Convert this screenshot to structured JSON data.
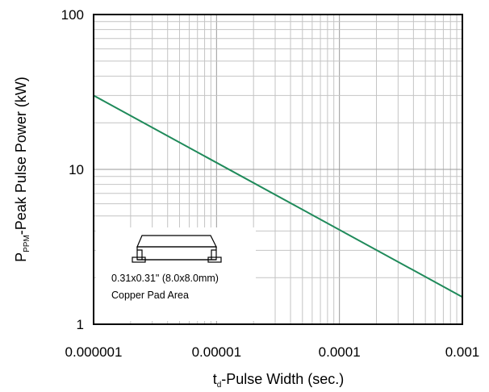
{
  "chart_data": {
    "type": "line",
    "x_scale": "log",
    "y_scale": "log",
    "xlim": [
      1e-06,
      0.001
    ],
    "ylim": [
      1,
      100
    ],
    "x_ticks": [
      "0.000001",
      "0.00001",
      "0.0001",
      "0.001"
    ],
    "y_ticks": [
      "1",
      "10",
      "100"
    ],
    "grid": true,
    "line_color": "#1f8a5a",
    "xlabel": {
      "t": "t",
      "sub": "d",
      "rest": "-Pulse Width (sec.)"
    },
    "ylabel": {
      "p": "P",
      "sub": "PPM",
      "rest": "-Peak Pulse Power (kW)"
    },
    "series": [
      {
        "x": [
          1e-06,
          0.001
        ],
        "y": [
          30,
          1.5
        ]
      }
    ],
    "annotation": {
      "line1": "0.31x0.31\" (8.0x8.0mm)",
      "line2": "Copper Pad Area",
      "icon": "smd-package-icon"
    }
  }
}
